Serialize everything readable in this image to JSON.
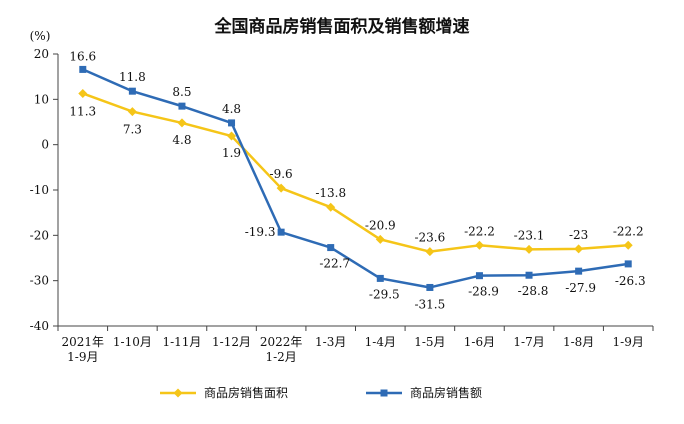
{
  "chart_data": {
    "type": "line",
    "title": "全国商品房销售面积及销售额增速",
    "unit_label": "(%)",
    "categories": [
      [
        "2021年",
        "1-9月"
      ],
      [
        "1-10月"
      ],
      [
        "1-11月"
      ],
      [
        "1-12月"
      ],
      [
        "2022年",
        "1-2月"
      ],
      [
        "1-3月"
      ],
      [
        "1-4月"
      ],
      [
        "1-5月"
      ],
      [
        "1-6月"
      ],
      [
        "1-7月"
      ],
      [
        "1-8月"
      ],
      [
        "1-9月"
      ]
    ],
    "ylim": [
      -40,
      20
    ],
    "yticks": [
      20,
      10,
      0,
      -10,
      -20,
      -30,
      -40
    ],
    "grid": false,
    "legend_position": "bottom",
    "series": [
      {
        "name": "商品房销售面积",
        "color": "#F5C518",
        "marker": "diamond",
        "values": [
          11.3,
          7.3,
          4.8,
          1.9,
          -9.6,
          -13.8,
          -20.9,
          -23.6,
          -22.2,
          -23.1,
          -23.0,
          -22.2
        ]
      },
      {
        "name": "商品房销售额",
        "color": "#2E6BB5",
        "marker": "square",
        "values": [
          16.6,
          11.8,
          8.5,
          4.8,
          -19.3,
          -22.7,
          -29.5,
          -31.5,
          -28.9,
          -28.8,
          -27.9,
          -26.3
        ]
      }
    ]
  }
}
